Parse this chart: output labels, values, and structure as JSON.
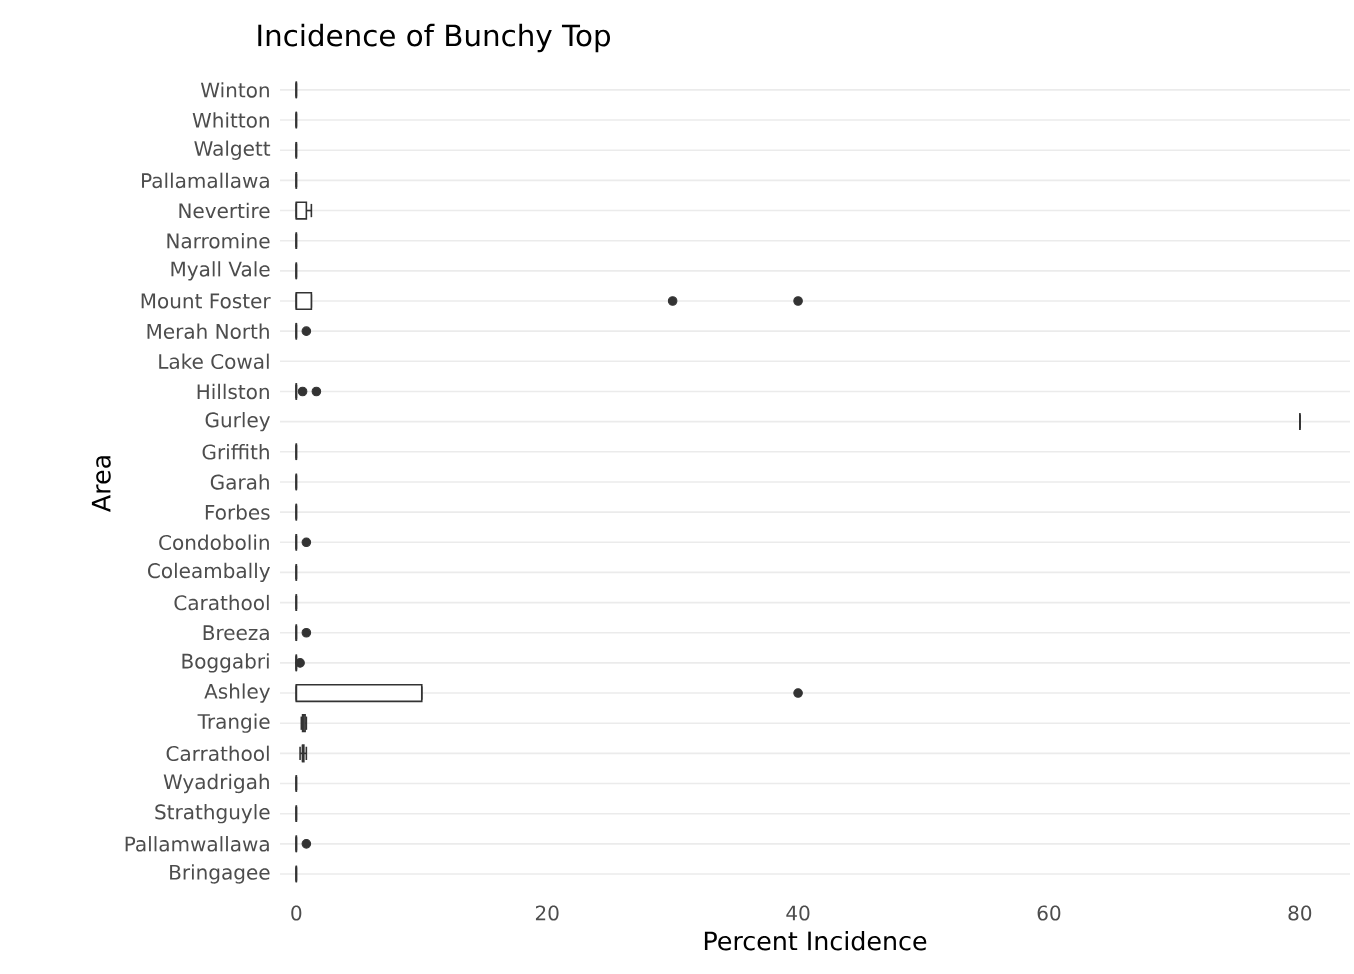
{
  "chart_data": {
    "type": "box",
    "orientation": "horizontal",
    "title": "Incidence of Bunchy Top",
    "xlabel": "Percent Incidence",
    "ylabel": "Area",
    "categories": [
      "Winton",
      "Whitton",
      "Walgett",
      "Pallamallawa",
      "Nevertire",
      "Narromine",
      "Myall Vale",
      "Mount Foster",
      "Merah North",
      "Lake Cowal",
      "Hillston",
      "Gurley",
      "Griffith",
      "Garah",
      "Forbes",
      "Condobolin",
      "Coleambally",
      "Carathool",
      "Breeza",
      "Boggabri",
      "Ashley",
      "Trangie",
      "Carrathool",
      "Wyadrigah",
      "Strathguyle",
      "Pallamwallawa",
      "Bringagee"
    ],
    "boxes": [
      {
        "low": 0,
        "q1": 0,
        "median": 0,
        "q3": 0,
        "high": 0
      },
      {
        "low": 0,
        "q1": 0,
        "median": 0,
        "q3": 0,
        "high": 0
      },
      {
        "low": 0,
        "q1": 0,
        "median": 0,
        "q3": 0,
        "high": 0
      },
      {
        "low": 0,
        "q1": 0,
        "median": 0,
        "q3": 0,
        "high": 0
      },
      {
        "low": 0,
        "q1": 0,
        "median": 0,
        "q3": 0.8,
        "high": 1.2
      },
      {
        "low": 0,
        "q1": 0,
        "median": 0,
        "q3": 0,
        "high": 0
      },
      {
        "low": 0,
        "q1": 0,
        "median": 0,
        "q3": 0,
        "high": 0
      },
      {
        "low": 0,
        "q1": 0,
        "median": 0,
        "q3": 1.2,
        "high": 1.2,
        "outliers": [
          30,
          40
        ]
      },
      {
        "low": 0,
        "q1": 0,
        "median": 0,
        "q3": 0,
        "high": 0,
        "outliers": [
          0.8
        ]
      },
      null,
      {
        "low": 0,
        "q1": 0,
        "median": 0,
        "q3": 0,
        "high": 0,
        "outliers": [
          0.5,
          1.6
        ]
      },
      {
        "low": 80,
        "q1": 80,
        "median": 80,
        "q3": 80,
        "high": 80
      },
      {
        "low": 0,
        "q1": 0,
        "median": 0,
        "q3": 0,
        "high": 0
      },
      {
        "low": 0,
        "q1": 0,
        "median": 0,
        "q3": 0,
        "high": 0
      },
      {
        "low": 0,
        "q1": 0,
        "median": 0,
        "q3": 0,
        "high": 0
      },
      {
        "low": 0,
        "q1": 0,
        "median": 0,
        "q3": 0,
        "high": 0,
        "outliers": [
          0.8
        ]
      },
      {
        "low": 0,
        "q1": 0,
        "median": 0,
        "q3": 0,
        "high": 0
      },
      {
        "low": 0,
        "q1": 0,
        "median": 0,
        "q3": 0,
        "high": 0
      },
      {
        "low": 0,
        "q1": 0,
        "median": 0,
        "q3": 0,
        "high": 0,
        "outliers": [
          0.8
        ]
      },
      {
        "low": 0,
        "q1": 0,
        "median": 0,
        "q3": 0,
        "high": 0,
        "outliers": [
          0.3
        ]
      },
      {
        "low": 0,
        "q1": 0,
        "median": 0,
        "q3": 10,
        "high": 10,
        "outliers": [
          40
        ]
      },
      {
        "low": 0.4,
        "q1": 0.5,
        "median": 0.6,
        "q3": 0.7,
        "high": 0.8
      },
      {
        "low": 0.3,
        "q1": 0.5,
        "median": 0.5,
        "q3": 0.6,
        "high": 0.8
      },
      {
        "low": 0,
        "q1": 0,
        "median": 0,
        "q3": 0,
        "high": 0
      },
      {
        "low": 0,
        "q1": 0,
        "median": 0,
        "q3": 0,
        "high": 0
      },
      {
        "low": 0,
        "q1": 0,
        "median": 0,
        "q3": 0,
        "high": 0,
        "outliers": [
          0.8
        ]
      },
      {
        "low": 0,
        "q1": 0,
        "median": 0,
        "q3": 0,
        "high": 0
      }
    ],
    "xlim": [
      -1.3,
      84
    ],
    "xticks": [
      0,
      20,
      40,
      60,
      80
    ],
    "grid": "y"
  }
}
